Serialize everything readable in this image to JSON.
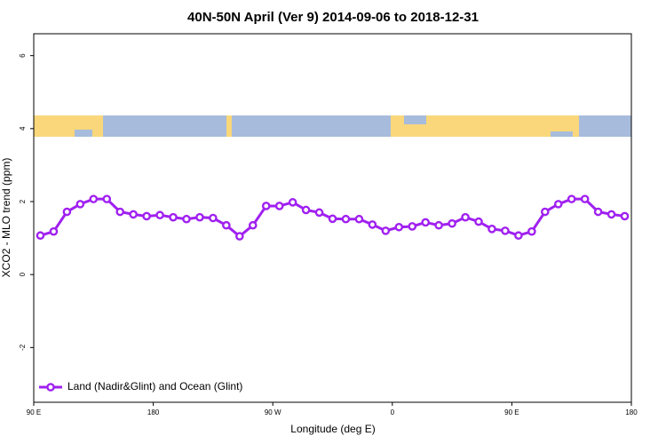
{
  "chart_data": {
    "type": "line",
    "title": "40N-50N April (Ver 9)   2014-09-06 to 2018-12-31",
    "x_label": "Longitude (deg E)",
    "y_label": "XCO2 - MLO trend (ppm)",
    "x": [
      95,
      105,
      115,
      125,
      135,
      145,
      155,
      165,
      175,
      185,
      195,
      205,
      215,
      225,
      235,
      245,
      255,
      265,
      275,
      285,
      295,
      305,
      315,
      325,
      335,
      345,
      355,
      365,
      375,
      385,
      395,
      405,
      415,
      425,
      435,
      445,
      455,
      465,
      475,
      485,
      495,
      505,
      515,
      525,
      535
    ],
    "series": [
      {
        "name": "Land (Nadir&Glint) and Ocean (Glint)",
        "color": "#a020f0",
        "values": [
          1.07,
          1.18,
          1.72,
          1.93,
          2.07,
          2.07,
          1.72,
          1.65,
          1.6,
          1.63,
          1.57,
          1.52,
          1.57,
          1.55,
          1.35,
          1.05,
          1.35,
          1.88,
          1.88,
          1.98,
          1.77,
          1.7,
          1.53,
          1.52,
          1.52,
          1.37,
          1.2,
          1.3,
          1.32,
          1.43,
          1.35,
          1.4,
          1.57,
          1.45,
          1.25,
          1.2,
          1.07,
          1.18,
          1.72,
          1.93,
          2.07,
          2.07,
          1.72,
          1.65,
          1.6
        ]
      }
    ],
    "xlim": [
      90,
      540
    ],
    "xticks": [
      {
        "value": 90,
        "label": "90 E"
      },
      180,
      {
        "value": 270,
        "label": "90 W"
      },
      {
        "value": 360,
        "label": "0"
      },
      {
        "value": 450,
        "label": "90 E"
      },
      {
        "value": 540,
        "label": "180"
      }
    ],
    "ylim": [
      -3.5,
      6.6
    ],
    "yticks": [
      -2,
      0,
      2,
      4,
      6
    ],
    "legend": "bottom-left"
  }
}
